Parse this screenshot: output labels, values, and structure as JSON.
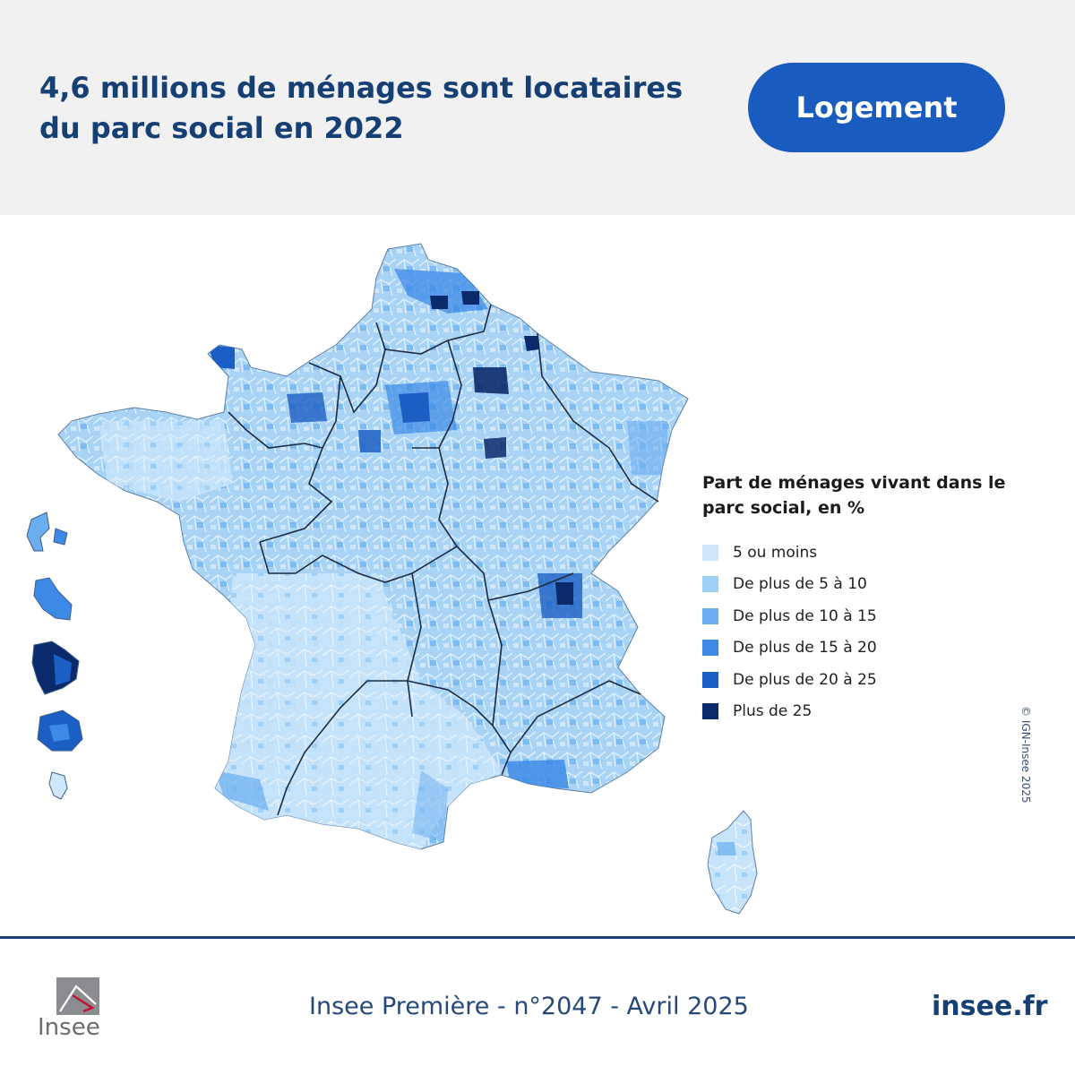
{
  "header": {
    "title_line1": "4,6 millions de ménages sont locataires",
    "title_line2": "du parc social en 2022",
    "tag": "Logement"
  },
  "legend": {
    "title_line1": "Part de ménages vivant dans le",
    "title_line2": "parc social, en %",
    "items": [
      {
        "label": "5 ou moins",
        "color": "#cfe7fb"
      },
      {
        "label": "De plus de 5 à 10",
        "color": "#9fd0f7"
      },
      {
        "label": "De plus de 10 à 15",
        "color": "#6aaef0"
      },
      {
        "label": "De plus de 15 à 20",
        "color": "#3c8ae6"
      },
      {
        "label": "De plus de 20 à 25",
        "color": "#1b5fc4"
      },
      {
        "label": "Plus de 25",
        "color": "#0b2a6b"
      }
    ]
  },
  "copyright": "© IGN-Insee 2025",
  "footer": {
    "logo_text": "Insee",
    "publication": "Insee Première - n°2047 - Avril 2025",
    "site": "insee.fr"
  },
  "colors": {
    "brand_navy": "#163f74",
    "brand_blue": "#1a5bc0",
    "header_bg": "#f1f1f2"
  }
}
